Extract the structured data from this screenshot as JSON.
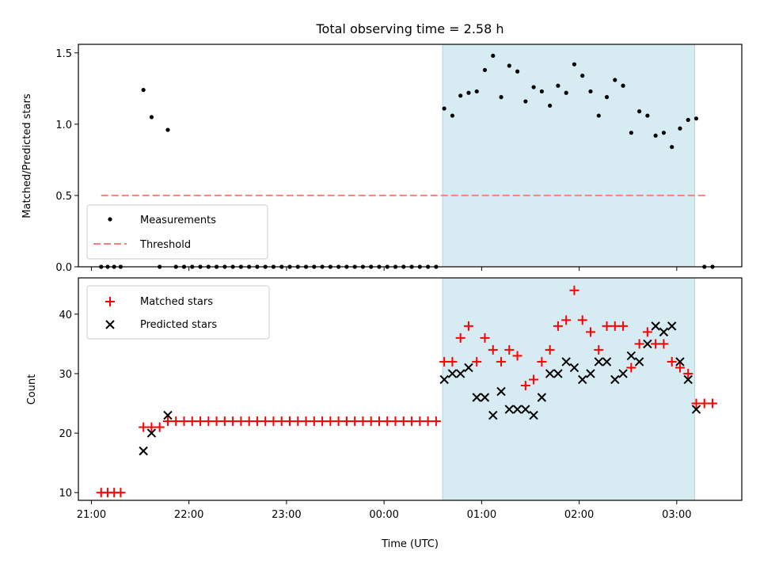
{
  "figure": {
    "title": "Total observing time = 2.58 h",
    "xlabel": "Time (UTC)"
  },
  "chart_data": [
    {
      "type": "scatter",
      "ylabel": "Matched/Predicted stars",
      "x_time_unit": "hours (UTC)",
      "xlim": [
        "20:52",
        "03:40"
      ],
      "ylim": [
        0,
        1.56
      ],
      "x_ticks": [
        "21:00",
        "22:00",
        "23:00",
        "00:00",
        "01:00",
        "02:00",
        "03:00"
      ],
      "y_ticks": [
        0.0,
        0.5,
        1.0,
        1.5
      ],
      "y_tick_labels": [
        "0.0",
        "0.5",
        "1.0",
        "1.5"
      ],
      "shaded_region": {
        "x": [
          "00:36",
          "03:11"
        ],
        "color": "#add8e6"
      },
      "threshold": {
        "value": 0.5,
        "x": [
          "21:06",
          "03:18"
        ],
        "color": "#ff7f7f"
      },
      "legend": {
        "placement": "lower-left",
        "entries": [
          "Measurements",
          "Threshold"
        ]
      },
      "series": [
        {
          "name": "Measurements",
          "color": "#000000",
          "points": [
            [
              "21:06",
              0
            ],
            [
              "21:10",
              0
            ],
            [
              "21:14",
              0
            ],
            [
              "21:18",
              0
            ],
            [
              "21:32",
              1.24
            ],
            [
              "21:37",
              1.05
            ],
            [
              "21:42",
              0
            ],
            [
              "21:47",
              0.96
            ],
            [
              "21:52",
              0
            ],
            [
              "21:57",
              0
            ],
            [
              "22:02",
              0
            ],
            [
              "22:07",
              0
            ],
            [
              "22:12",
              0
            ],
            [
              "22:17",
              0
            ],
            [
              "22:22",
              0
            ],
            [
              "22:27",
              0
            ],
            [
              "22:32",
              0
            ],
            [
              "22:37",
              0
            ],
            [
              "22:42",
              0
            ],
            [
              "22:47",
              0
            ],
            [
              "22:52",
              0
            ],
            [
              "22:57",
              0
            ],
            [
              "23:02",
              0
            ],
            [
              "23:07",
              0
            ],
            [
              "23:12",
              0
            ],
            [
              "23:17",
              0
            ],
            [
              "23:22",
              0
            ],
            [
              "23:27",
              0
            ],
            [
              "23:32",
              0
            ],
            [
              "23:37",
              0
            ],
            [
              "23:42",
              0
            ],
            [
              "23:47",
              0
            ],
            [
              "23:52",
              0
            ],
            [
              "23:57",
              0
            ],
            [
              "00:02",
              0
            ],
            [
              "00:07",
              0
            ],
            [
              "00:12",
              0
            ],
            [
              "00:17",
              0
            ],
            [
              "00:22",
              0
            ],
            [
              "00:27",
              0
            ],
            [
              "00:32",
              0
            ],
            [
              "00:37",
              1.11
            ],
            [
              "00:42",
              1.06
            ],
            [
              "00:47",
              1.2
            ],
            [
              "00:52",
              1.22
            ],
            [
              "00:57",
              1.23
            ],
            [
              "01:02",
              1.38
            ],
            [
              "01:07",
              1.48
            ],
            [
              "01:12",
              1.19
            ],
            [
              "01:17",
              1.41
            ],
            [
              "01:22",
              1.37
            ],
            [
              "01:27",
              1.16
            ],
            [
              "01:32",
              1.26
            ],
            [
              "01:37",
              1.23
            ],
            [
              "01:42",
              1.13
            ],
            [
              "01:47",
              1.27
            ],
            [
              "01:52",
              1.22
            ],
            [
              "01:57",
              1.42
            ],
            [
              "02:02",
              1.34
            ],
            [
              "02:07",
              1.23
            ],
            [
              "02:12",
              1.06
            ],
            [
              "02:17",
              1.19
            ],
            [
              "02:22",
              1.31
            ],
            [
              "02:27",
              1.27
            ],
            [
              "02:32",
              0.94
            ],
            [
              "02:37",
              1.09
            ],
            [
              "02:42",
              1.06
            ],
            [
              "02:47",
              0.92
            ],
            [
              "02:52",
              0.94
            ],
            [
              "02:57",
              0.84
            ],
            [
              "03:02",
              0.97
            ],
            [
              "03:07",
              1.03
            ],
            [
              "03:12",
              1.04
            ],
            [
              "03:17",
              0
            ],
            [
              "03:22",
              0
            ]
          ]
        }
      ]
    },
    {
      "type": "scatter",
      "ylabel": "Count",
      "x_time_unit": "hours (UTC)",
      "xlim": [
        "20:52",
        "03:40"
      ],
      "ylim": [
        8.7,
        46.1
      ],
      "x_ticks": [
        "21:00",
        "22:00",
        "23:00",
        "00:00",
        "01:00",
        "02:00",
        "03:00"
      ],
      "y_ticks": [
        10,
        20,
        30,
        40
      ],
      "shaded_region": {
        "x": [
          "00:36",
          "03:11"
        ],
        "color": "#add8e6"
      },
      "legend": {
        "placement": "top-left",
        "entries": [
          "Matched stars",
          "Predicted stars"
        ]
      },
      "series": [
        {
          "name": "Matched stars",
          "marker": "plus",
          "color": "#ff0000",
          "points": [
            [
              "21:06",
              10
            ],
            [
              "21:10",
              10
            ],
            [
              "21:14",
              10
            ],
            [
              "21:18",
              10
            ],
            [
              "21:32",
              21
            ],
            [
              "21:37",
              21
            ],
            [
              "21:42",
              21
            ],
            [
              "21:47",
              22
            ],
            [
              "21:52",
              22
            ],
            [
              "21:57",
              22
            ],
            [
              "22:02",
              22
            ],
            [
              "22:07",
              22
            ],
            [
              "22:12",
              22
            ],
            [
              "22:17",
              22
            ],
            [
              "22:22",
              22
            ],
            [
              "22:27",
              22
            ],
            [
              "22:32",
              22
            ],
            [
              "22:37",
              22
            ],
            [
              "22:42",
              22
            ],
            [
              "22:47",
              22
            ],
            [
              "22:52",
              22
            ],
            [
              "22:57",
              22
            ],
            [
              "23:02",
              22
            ],
            [
              "23:07",
              22
            ],
            [
              "23:12",
              22
            ],
            [
              "23:17",
              22
            ],
            [
              "23:22",
              22
            ],
            [
              "23:27",
              22
            ],
            [
              "23:32",
              22
            ],
            [
              "23:37",
              22
            ],
            [
              "23:42",
              22
            ],
            [
              "23:47",
              22
            ],
            [
              "23:52",
              22
            ],
            [
              "23:57",
              22
            ],
            [
              "00:02",
              22
            ],
            [
              "00:07",
              22
            ],
            [
              "00:12",
              22
            ],
            [
              "00:17",
              22
            ],
            [
              "00:22",
              22
            ],
            [
              "00:27",
              22
            ],
            [
              "00:32",
              22
            ],
            [
              "00:37",
              32
            ],
            [
              "00:42",
              32
            ],
            [
              "00:47",
              36
            ],
            [
              "00:52",
              38
            ],
            [
              "00:57",
              32
            ],
            [
              "01:02",
              36
            ],
            [
              "01:07",
              34
            ],
            [
              "01:12",
              32
            ],
            [
              "01:17",
              34
            ],
            [
              "01:22",
              33
            ],
            [
              "01:27",
              28
            ],
            [
              "01:32",
              29
            ],
            [
              "01:37",
              32
            ],
            [
              "01:42",
              34
            ],
            [
              "01:47",
              38
            ],
            [
              "01:52",
              39
            ],
            [
              "01:57",
              44
            ],
            [
              "02:02",
              39
            ],
            [
              "02:07",
              37
            ],
            [
              "02:12",
              34
            ],
            [
              "02:17",
              38
            ],
            [
              "02:22",
              38
            ],
            [
              "02:27",
              38
            ],
            [
              "02:32",
              31
            ],
            [
              "02:37",
              35
            ],
            [
              "02:42",
              37
            ],
            [
              "02:47",
              35
            ],
            [
              "02:52",
              35
            ],
            [
              "02:57",
              32
            ],
            [
              "03:02",
              31
            ],
            [
              "03:07",
              30
            ],
            [
              "03:12",
              25
            ],
            [
              "03:17",
              25
            ],
            [
              "03:22",
              25
            ]
          ]
        },
        {
          "name": "Predicted stars",
          "marker": "x",
          "color": "#000000",
          "points": [
            [
              "21:32",
              17
            ],
            [
              "21:37",
              20
            ],
            [
              "21:47",
              23
            ],
            [
              "00:37",
              29
            ],
            [
              "00:42",
              30
            ],
            [
              "00:47",
              30
            ],
            [
              "00:52",
              31
            ],
            [
              "00:57",
              26
            ],
            [
              "01:02",
              26
            ],
            [
              "01:07",
              23
            ],
            [
              "01:12",
              27
            ],
            [
              "01:17",
              24
            ],
            [
              "01:22",
              24
            ],
            [
              "01:27",
              24
            ],
            [
              "01:32",
              23
            ],
            [
              "01:37",
              26
            ],
            [
              "01:42",
              30
            ],
            [
              "01:47",
              30
            ],
            [
              "01:52",
              32
            ],
            [
              "01:57",
              31
            ],
            [
              "02:02",
              29
            ],
            [
              "02:07",
              30
            ],
            [
              "02:12",
              32
            ],
            [
              "02:17",
              32
            ],
            [
              "02:22",
              29
            ],
            [
              "02:27",
              30
            ],
            [
              "02:32",
              33
            ],
            [
              "02:37",
              32
            ],
            [
              "02:42",
              35
            ],
            [
              "02:47",
              38
            ],
            [
              "02:52",
              37
            ],
            [
              "02:57",
              38
            ],
            [
              "03:02",
              32
            ],
            [
              "03:07",
              29
            ],
            [
              "03:12",
              24
            ]
          ]
        }
      ]
    }
  ]
}
